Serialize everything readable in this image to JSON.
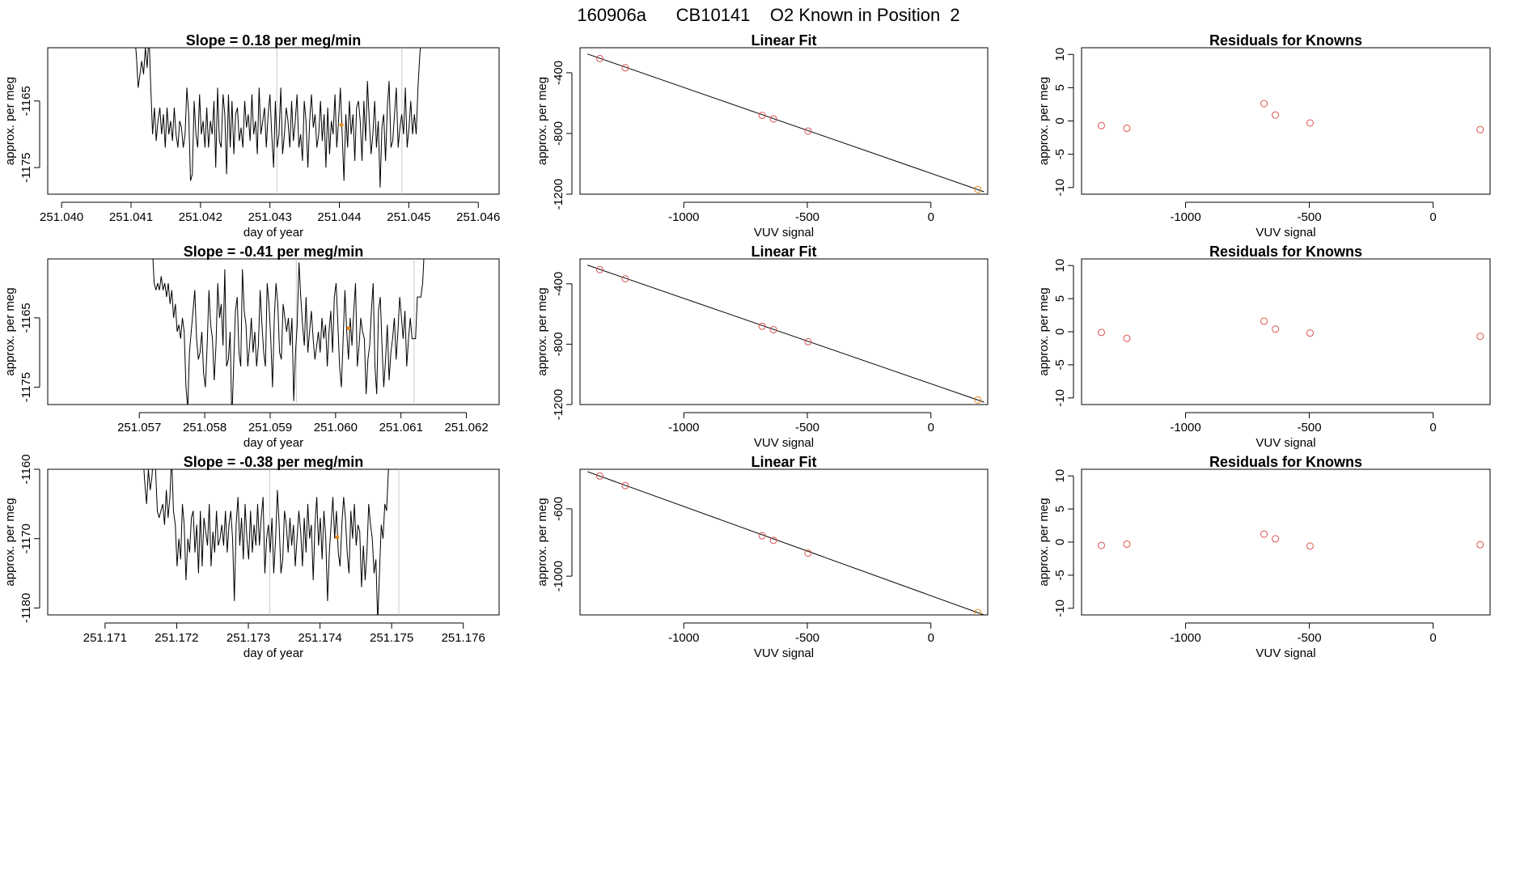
{
  "page_title": "160906a      CB10141    O2 Known in Position  2",
  "colors": {
    "line": "#000000",
    "grid_vline": "#c8c8c8",
    "known_point": "#d9534f",
    "highlight_point": "#e08a1e"
  },
  "chart_data": [
    {
      "type": "line",
      "panel": "time-series-1",
      "title": "Slope =  0.18  per meg/min",
      "xlabel": "day of year",
      "ylabel": "approx. per meg",
      "xlim": [
        251.0398,
        251.0463
      ],
      "ylim": [
        -1179,
        -1157
      ],
      "xticks": [
        251.04,
        251.041,
        251.042,
        251.043,
        251.044,
        251.045,
        251.046
      ],
      "xtick_labels": [
        "251.040",
        "251.041",
        "251.042",
        "251.043",
        "251.044",
        "251.045",
        "251.046"
      ],
      "yticks": [
        -1165,
        -1175
      ],
      "ytick_labels": [
        "-1165",
        "-1175"
      ],
      "vlines": [
        251.0431,
        251.0449
      ],
      "x_start": 251.04105,
      "x_step": 2.6e-05,
      "y": [
        -1155,
        -1158,
        -1163,
        -1161,
        -1159,
        -1161,
        -1157,
        -1160,
        -1155,
        -1163,
        -1170,
        -1166,
        -1171,
        -1168,
        -1166,
        -1170,
        -1167,
        -1172,
        -1166,
        -1170,
        -1168,
        -1171,
        -1166,
        -1170,
        -1172,
        -1168,
        -1169,
        -1172,
        -1170,
        -1163,
        -1167,
        -1177,
        -1176,
        -1165,
        -1170,
        -1172,
        -1164,
        -1170,
        -1168,
        -1172,
        -1166,
        -1172,
        -1168,
        -1170,
        -1165,
        -1175,
        -1163,
        -1171,
        -1172,
        -1164,
        -1167,
        -1176,
        -1164,
        -1172,
        -1165,
        -1173,
        -1167,
        -1166,
        -1171,
        -1169,
        -1172,
        -1165,
        -1169,
        -1167,
        -1171,
        -1164,
        -1170,
        -1168,
        -1173,
        -1163,
        -1170,
        -1168,
        -1166,
        -1172,
        -1167,
        -1164,
        -1170,
        -1175,
        -1165,
        -1172,
        -1170,
        -1163,
        -1173,
        -1170,
        -1166,
        -1168,
        -1172,
        -1165,
        -1171,
        -1168,
        -1164,
        -1172,
        -1170,
        -1174,
        -1165,
        -1168,
        -1175,
        -1168,
        -1164,
        -1169,
        -1167,
        -1172,
        -1170,
        -1165,
        -1171,
        -1167,
        -1175,
        -1166,
        -1173,
        -1168,
        -1170,
        -1164,
        -1172,
        -1168,
        -1163,
        -1170,
        -1177,
        -1167,
        -1172,
        -1165,
        -1170,
        -1167,
        -1174,
        -1166,
        -1165,
        -1168,
        -1174,
        -1165,
        -1171,
        -1162,
        -1168,
        -1173,
        -1170,
        -1165,
        -1172,
        -1168,
        -1178,
        -1169,
        -1167,
        -1174,
        -1166,
        -1162,
        -1172,
        -1171,
        -1167,
        -1163,
        -1172,
        -1169,
        -1167,
        -1170,
        -1163,
        -1172,
        -1169,
        -1165,
        -1170,
        -1167,
        -1170,
        -1163,
        -1158,
        -1155
      ],
      "highlight": {
        "x": 251.04403,
        "y": -1168.6
      }
    },
    {
      "type": "scatter",
      "panel": "linear-fit-1",
      "title": "Linear Fit",
      "xlabel": "VUV signal",
      "ylabel": "approx. per meg",
      "xlim": [
        -1420,
        230
      ],
      "ylim": [
        -1200,
        -235
      ],
      "xticks": [
        -1000,
        -500,
        0
      ],
      "xtick_labels": [
        "-1000",
        "-500",
        "0"
      ],
      "yticks": [
        -400,
        -800,
        -1200
      ],
      "ytick_labels": [
        "-400",
        "-800",
        "-1200"
      ],
      "points": [
        [
          -1340,
          -306
        ],
        [
          -1237,
          -367
        ],
        [
          -683,
          -681
        ],
        [
          -637,
          -704
        ],
        [
          -497,
          -784
        ],
        [
          190,
          -1169
        ]
      ],
      "point_colors": [
        "known",
        "known",
        "known",
        "known",
        "known",
        "highlight"
      ],
      "fit_line": [
        [
          -1390,
          -276
        ],
        [
          215,
          -1184
        ]
      ]
    },
    {
      "type": "scatter",
      "panel": "residuals-1",
      "title": "Residuals for Knowns",
      "xlabel": "VUV signal",
      "ylabel": "approx. per meg",
      "xlim": [
        -1420,
        230
      ],
      "ylim": [
        -11,
        11
      ],
      "xticks": [
        -1000,
        -500,
        0
      ],
      "xtick_labels": [
        "-1000",
        "-500",
        "0"
      ],
      "yticks": [
        10,
        5,
        0,
        -5,
        -10
      ],
      "ytick_labels": [
        "10",
        "5",
        "0",
        "-5",
        "-10"
      ],
      "points": [
        [
          -1340,
          -0.7
        ],
        [
          -1237,
          -1.1
        ],
        [
          -683,
          2.6
        ],
        [
          -637,
          0.9
        ],
        [
          -497,
          -0.3
        ],
        [
          190,
          -1.3
        ]
      ]
    },
    {
      "type": "line",
      "panel": "time-series-2",
      "title": "Slope =  -0.41  per meg/min",
      "xlabel": "day of year",
      "ylabel": "approx. per meg",
      "xlim": [
        251.0556,
        251.0625
      ],
      "ylim": [
        -1177.5,
        -1156.5
      ],
      "xticks": [
        251.057,
        251.058,
        251.059,
        251.06,
        251.061,
        251.062
      ],
      "xtick_labels": [
        "251.057",
        "251.058",
        "251.059",
        "251.060",
        "251.061",
        "251.062"
      ],
      "yticks": [
        -1165,
        -1175
      ],
      "ytick_labels": [
        "-1165",
        "-1175"
      ],
      "vlines": [
        251.0594,
        251.0612
      ],
      "x_start": 251.0572,
      "x_step": 2.7e-05,
      "y": [
        -1155,
        -1160,
        -1161,
        -1160,
        -1161,
        -1159,
        -1161,
        -1160,
        -1162,
        -1160,
        -1163,
        -1161,
        -1165,
        -1163,
        -1167,
        -1166,
        -1168,
        -1165,
        -1167,
        -1175,
        -1178,
        -1170,
        -1167,
        -1164,
        -1161,
        -1168,
        -1171,
        -1170,
        -1167,
        -1173,
        -1175,
        -1169,
        -1161,
        -1166,
        -1168,
        -1174,
        -1169,
        -1160,
        -1165,
        -1163,
        -1169,
        -1158,
        -1172,
        -1171,
        -1167,
        -1180,
        -1172,
        -1164,
        -1162,
        -1170,
        -1172,
        -1158,
        -1164,
        -1166,
        -1172,
        -1169,
        -1165,
        -1170,
        -1167,
        -1172,
        -1169,
        -1161,
        -1166,
        -1170,
        -1172,
        -1160,
        -1163,
        -1168,
        -1175,
        -1165,
        -1160,
        -1163,
        -1170,
        -1171,
        -1163,
        -1165,
        -1167,
        -1165,
        -1169,
        -1165,
        -1177,
        -1170,
        -1166,
        -1157,
        -1162,
        -1166,
        -1169,
        -1162,
        -1170,
        -1167,
        -1164,
        -1168,
        -1171,
        -1169,
        -1167,
        -1170,
        -1165,
        -1168,
        -1166,
        -1172,
        -1167,
        -1164,
        -1170,
        -1162,
        -1160,
        -1166,
        -1172,
        -1175,
        -1168,
        -1161,
        -1167,
        -1171,
        -1165,
        -1169,
        -1164,
        -1160,
        -1172,
        -1169,
        -1165,
        -1167,
        -1168,
        -1176,
        -1171,
        -1169,
        -1164,
        -1160,
        -1172,
        -1176,
        -1164,
        -1162,
        -1169,
        -1175,
        -1171,
        -1166,
        -1174,
        -1170,
        -1168,
        -1165,
        -1171,
        -1167,
        -1162,
        -1165,
        -1168,
        -1164,
        -1172,
        -1168,
        -1165,
        -1168,
        -1168,
        -1168,
        -1162,
        -1162,
        -1162,
        -1160,
        -1155
      ],
      "highlight": {
        "x": 251.0602,
        "y": -1166.5
      }
    },
    {
      "type": "scatter",
      "panel": "linear-fit-2",
      "title": "Linear Fit",
      "xlabel": "VUV signal",
      "ylabel": "approx. per meg",
      "xlim": [
        -1420,
        230
      ],
      "ylim": [
        -1200,
        -235
      ],
      "xticks": [
        -1000,
        -500,
        0
      ],
      "xtick_labels": [
        "-1000",
        "-500",
        "0"
      ],
      "yticks": [
        -400,
        -800,
        -1200
      ],
      "ytick_labels": [
        "-400",
        "-800",
        "-1200"
      ],
      "points": [
        [
          -1340,
          -306
        ],
        [
          -1237,
          -367
        ],
        [
          -683,
          -681
        ],
        [
          -637,
          -704
        ],
        [
          -497,
          -784
        ],
        [
          190,
          -1169
        ]
      ],
      "point_colors": [
        "known",
        "known",
        "known",
        "known",
        "known",
        "highlight"
      ],
      "fit_line": [
        [
          -1390,
          -276
        ],
        [
          215,
          -1184
        ]
      ]
    },
    {
      "type": "scatter",
      "panel": "residuals-2",
      "title": "Residuals for Knowns",
      "xlabel": "VUV signal",
      "ylabel": "approx. per meg",
      "xlim": [
        -1420,
        230
      ],
      "ylim": [
        -11,
        11
      ],
      "xticks": [
        -1000,
        -500,
        0
      ],
      "xtick_labels": [
        "-1000",
        "-500",
        "0"
      ],
      "yticks": [
        10,
        5,
        0,
        -5,
        -10
      ],
      "ytick_labels": [
        "10",
        "5",
        "0",
        "-5",
        "-10"
      ],
      "points": [
        [
          -1340,
          -0.1
        ],
        [
          -1237,
          -1.0
        ],
        [
          -683,
          1.6
        ],
        [
          -637,
          0.4
        ],
        [
          -497,
          -0.2
        ],
        [
          190,
          -0.7
        ]
      ]
    },
    {
      "type": "line",
      "panel": "time-series-3",
      "title": "Slope =  -0.38  per meg/min",
      "xlabel": "day of year",
      "ylabel": "approx. per meg",
      "xlim": [
        251.1702,
        251.1765
      ],
      "ylim": [
        -1181,
        -1160
      ],
      "xticks": [
        251.171,
        251.172,
        251.173,
        251.174,
        251.175,
        251.176
      ],
      "xtick_labels": [
        "251.171",
        "251.172",
        "251.173",
        "251.174",
        "251.175",
        "251.176"
      ],
      "yticks": [
        -1160,
        -1170,
        -1180
      ],
      "ytick_labels": [
        "-1160",
        "-1170",
        "-1180"
      ],
      "vlines": [
        251.1733,
        251.1751
      ],
      "x_start": 251.17153,
      "x_step": 2.5e-05,
      "y": [
        -1158,
        -1162,
        -1165,
        -1160,
        -1163,
        -1161,
        -1157,
        -1160,
        -1166,
        -1167,
        -1166,
        -1165,
        -1168,
        -1163,
        -1167,
        -1164,
        -1158,
        -1166,
        -1168,
        -1174,
        -1170,
        -1173,
        -1165,
        -1168,
        -1176,
        -1170,
        -1172,
        -1167,
        -1166,
        -1172,
        -1168,
        -1175,
        -1166,
        -1174,
        -1167,
        -1169,
        -1171,
        -1165,
        -1174,
        -1169,
        -1172,
        -1166,
        -1171,
        -1170,
        -1168,
        -1171,
        -1166,
        -1172,
        -1168,
        -1166,
        -1170,
        -1179,
        -1168,
        -1164,
        -1171,
        -1167,
        -1173,
        -1165,
        -1170,
        -1173,
        -1166,
        -1172,
        -1168,
        -1171,
        -1165,
        -1171,
        -1167,
        -1164,
        -1175,
        -1170,
        -1168,
        -1172,
        -1167,
        -1175,
        -1170,
        -1163,
        -1168,
        -1175,
        -1173,
        -1166,
        -1168,
        -1172,
        -1167,
        -1171,
        -1168,
        -1174,
        -1170,
        -1166,
        -1169,
        -1174,
        -1167,
        -1172,
        -1165,
        -1170,
        -1168,
        -1176,
        -1168,
        -1164,
        -1171,
        -1167,
        -1173,
        -1166,
        -1170,
        -1179,
        -1172,
        -1168,
        -1164,
        -1170,
        -1166,
        -1172,
        -1174,
        -1168,
        -1164,
        -1167,
        -1172,
        -1175,
        -1166,
        -1170,
        -1165,
        -1171,
        -1168,
        -1169,
        -1177,
        -1171,
        -1176,
        -1172,
        -1165,
        -1168,
        -1170,
        -1175,
        -1173,
        -1182,
        -1175,
        -1168,
        -1170,
        -1165,
        -1166,
        -1160,
        -1158
      ],
      "highlight": {
        "x": 251.17424,
        "y": -1169.8
      }
    },
    {
      "type": "scatter",
      "panel": "linear-fit-3",
      "title": "Linear Fit",
      "xlabel": "VUV signal",
      "ylabel": "approx. per meg",
      "xlim": [
        -1420,
        230
      ],
      "ylim": [
        -1230,
        -365
      ],
      "xticks": [
        -1000,
        -500,
        0
      ],
      "xtick_labels": [
        "-1000",
        "-500",
        "0"
      ],
      "yticks": [
        -600,
        -1000
      ],
      "ytick_labels": [
        "-600",
        "-1000"
      ],
      "points": [
        [
          -1340,
          -405
        ],
        [
          -1237,
          -462
        ],
        [
          -683,
          -760
        ],
        [
          -637,
          -787
        ],
        [
          -497,
          -863
        ],
        [
          190,
          -1217
        ]
      ],
      "point_colors": [
        "known",
        "known",
        "known",
        "known",
        "known",
        "highlight"
      ],
      "fit_line": [
        [
          -1390,
          -379
        ],
        [
          215,
          -1230
        ]
      ]
    },
    {
      "type": "scatter",
      "panel": "residuals-3",
      "title": "Residuals for Knowns",
      "xlabel": "VUV signal",
      "ylabel": "approx. per meg",
      "xlim": [
        -1420,
        230
      ],
      "ylim": [
        -11,
        11
      ],
      "xticks": [
        -1000,
        -500,
        0
      ],
      "xtick_labels": [
        "-1000",
        "-500",
        "0"
      ],
      "yticks": [
        10,
        5,
        0,
        -5,
        -10
      ],
      "ytick_labels": [
        "10",
        "5",
        "0",
        "-5",
        "-10"
      ],
      "points": [
        [
          -1340,
          -0.5
        ],
        [
          -1237,
          -0.3
        ],
        [
          -683,
          1.2
        ],
        [
          -637,
          0.5
        ],
        [
          -497,
          -0.6
        ],
        [
          190,
          -0.4
        ]
      ]
    }
  ]
}
